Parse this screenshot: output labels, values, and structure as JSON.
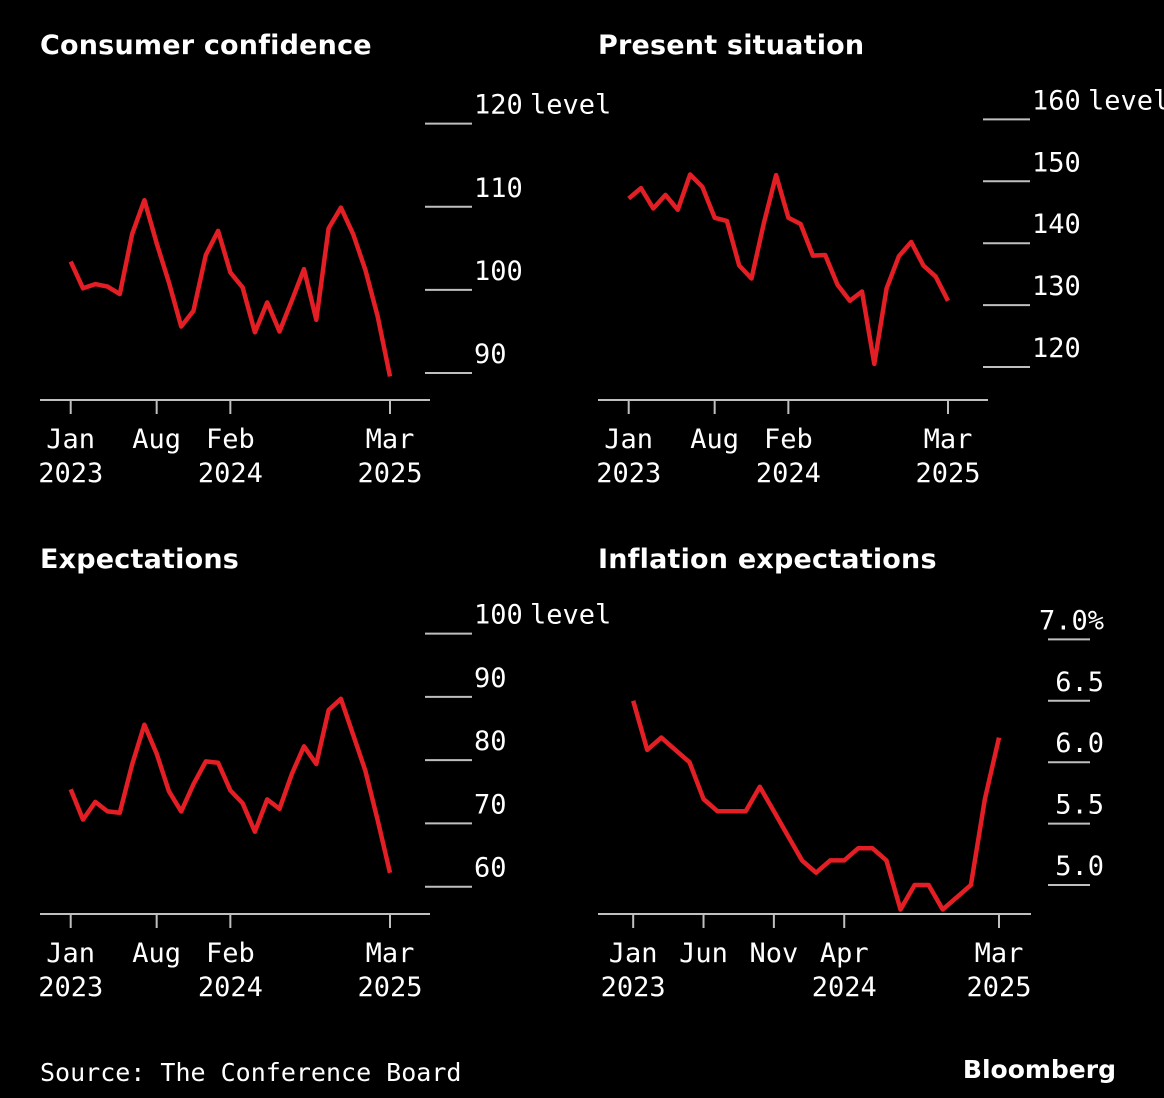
{
  "colors": {
    "background": "#000000",
    "line": "#e31e24",
    "axis": "#bfbfbf",
    "text": "#ffffff"
  },
  "source": "Source: The Conference Board",
  "brand": "Bloomberg",
  "chart_data": [
    {
      "type": "line",
      "title": "Consumer confidence",
      "ylabel": "level",
      "ylim": [
        87,
        122
      ],
      "yticks": [
        90,
        100,
        110,
        120
      ],
      "xlim": [
        -2.5,
        26
      ],
      "xticks": [
        {
          "x": 0,
          "line1": "Jan",
          "line2": "2023"
        },
        {
          "x": 7,
          "line1": "Aug",
          "line2": ""
        },
        {
          "x": 13,
          "line1": "Feb",
          "line2": "2024"
        },
        {
          "x": 26,
          "line1": "Mar",
          "line2": "2025"
        }
      ],
      "grid": false,
      "x": [
        0,
        1,
        2,
        3,
        4,
        5,
        6,
        7,
        8,
        9,
        10,
        11,
        12,
        13,
        14,
        15,
        16,
        17,
        18,
        19,
        20,
        21,
        22,
        23,
        24,
        25,
        26
      ],
      "values": [
        103.4,
        100.2,
        100.7,
        100.4,
        99.5,
        106.7,
        110.8,
        105.6,
        100.9,
        95.6,
        97.5,
        104.2,
        107.1,
        102.1,
        100.3,
        94.9,
        98.5,
        95.0,
        98.7,
        102.5,
        96.4,
        107.4,
        109.9,
        106.7,
        102.4,
        96.8,
        89.6
      ]
    },
    {
      "type": "line",
      "title": "Present situation",
      "ylabel": "level",
      "ylim": [
        115,
        162
      ],
      "yticks": [
        120,
        130,
        140,
        150,
        160
      ],
      "xlim": [
        -2.5,
        26
      ],
      "xticks": [
        {
          "x": 0,
          "line1": "Jan",
          "line2": "2023"
        },
        {
          "x": 7,
          "line1": "Aug",
          "line2": ""
        },
        {
          "x": 13,
          "line1": "Feb",
          "line2": "2024"
        },
        {
          "x": 26,
          "line1": "Mar",
          "line2": "2025"
        }
      ],
      "grid": false,
      "x": [
        0,
        1,
        2,
        3,
        4,
        5,
        6,
        7,
        8,
        9,
        10,
        11,
        12,
        13,
        14,
        15,
        16,
        17,
        18,
        19,
        20,
        21,
        22,
        23,
        24,
        25,
        26
      ],
      "values": [
        147.2,
        148.9,
        145.6,
        147.8,
        145.4,
        151.1,
        149.1,
        144.1,
        143.6,
        136.4,
        134.3,
        143.2,
        151.0,
        144.1,
        143.1,
        138.0,
        138.1,
        133.3,
        130.7,
        132.2,
        120.5,
        132.7,
        137.9,
        140.2,
        136.4,
        134.6,
        130.7
      ]
    },
    {
      "type": "line",
      "title": "Expectations",
      "ylabel": "level",
      "ylim": [
        56,
        102
      ],
      "yticks": [
        60,
        70,
        80,
        90,
        100
      ],
      "xlim": [
        -2.5,
        26
      ],
      "xticks": [
        {
          "x": 0,
          "line1": "Jan",
          "line2": "2023"
        },
        {
          "x": 7,
          "line1": "Aug",
          "line2": ""
        },
        {
          "x": 13,
          "line1": "Feb",
          "line2": "2024"
        },
        {
          "x": 26,
          "line1": "Mar",
          "line2": "2025"
        }
      ],
      "grid": false,
      "x": [
        0,
        1,
        2,
        3,
        4,
        5,
        6,
        7,
        8,
        9,
        10,
        11,
        12,
        13,
        14,
        15,
        16,
        17,
        18,
        19,
        20,
        21,
        22,
        23,
        24,
        25,
        26
      ],
      "values": [
        75.4,
        70.6,
        73.4,
        71.9,
        71.7,
        79.3,
        85.6,
        81.0,
        75.1,
        71.9,
        76.2,
        79.8,
        79.6,
        75.2,
        73.2,
        68.7,
        73.8,
        72.3,
        77.8,
        82.2,
        79.4,
        87.9,
        89.7,
        84.0,
        78.3,
        70.5,
        62.2
      ]
    },
    {
      "type": "line",
      "title": "Inflation expectations",
      "ylabel": "",
      "ylim": [
        4.78,
        7.15
      ],
      "yticks": [
        5.0,
        5.5,
        6.0,
        6.5,
        7.0
      ],
      "ytick_labels": [
        "5.0",
        "5.5",
        "6.0",
        "6.5",
        "7.0%"
      ],
      "xlim": [
        -2.5,
        26
      ],
      "xticks": [
        {
          "x": 0,
          "line1": "Jan",
          "line2": "2023"
        },
        {
          "x": 5,
          "line1": "Jun",
          "line2": ""
        },
        {
          "x": 10,
          "line1": "Nov",
          "line2": ""
        },
        {
          "x": 15,
          "line1": "Apr",
          "line2": "2024"
        },
        {
          "x": 26,
          "line1": "Mar",
          "line2": "2025"
        }
      ],
      "grid": false,
      "x": [
        0,
        1,
        2,
        3,
        4,
        5,
        6,
        7,
        8,
        9,
        10,
        11,
        12,
        13,
        14,
        15,
        16,
        17,
        18,
        19,
        20,
        21,
        22,
        23,
        24,
        25,
        26
      ],
      "values": [
        6.5,
        6.1,
        6.2,
        6.1,
        6.0,
        5.7,
        5.6,
        5.6,
        5.6,
        5.8,
        5.6,
        5.4,
        5.2,
        5.1,
        5.2,
        5.2,
        5.3,
        5.3,
        5.2,
        4.8,
        5.0,
        5.0,
        4.8,
        4.9,
        5.0,
        5.7,
        6.2
      ]
    }
  ]
}
